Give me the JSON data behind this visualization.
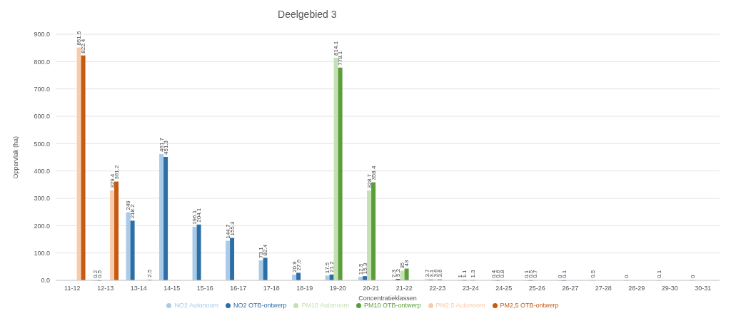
{
  "chart_data": {
    "type": "bar",
    "title": "Deelgebied 3",
    "xlabel": "Concentratieklassen",
    "ylabel": "Oppervlak (ha)",
    "categories": [
      "11-12",
      "12-13",
      "13-14",
      "14-15",
      "15-16",
      "16-17",
      "17-18",
      "18-19",
      "19-20",
      "20-21",
      "21-22",
      "22-23",
      "23-24",
      "24-25",
      "25-26",
      "26-27",
      "27-28",
      "28-29",
      "29-30",
      "30-31"
    ],
    "series": [
      {
        "name": "NO2 Autonoom",
        "color": "#a9cbe8",
        "values": [
          null,
          0.2,
          249.0,
          461.7,
          196.1,
          144.7,
          73.1,
          20.9,
          17.5,
          12.5,
          2.3,
          3.7,
          1.0,
          0.4,
          0.1,
          0.0,
          0.5,
          0.0,
          0.1,
          0.0
        ]
      },
      {
        "name": "NO2 OTB-ontwerp",
        "color": "#2e6ea6",
        "values": [
          null,
          0.5,
          218.2,
          451.3,
          204.1,
          155.3,
          82.4,
          27.6,
          21.2,
          15.3,
          5.2,
          3.1,
          1.1,
          0.6,
          0.5,
          0.1,
          null,
          null,
          null,
          null
        ]
      },
      {
        "name": "PM10 Autonoom",
        "color": "#c5e0b3",
        "values": [
          null,
          null,
          null,
          null,
          null,
          null,
          null,
          null,
          814.1,
          328.7,
          35.0,
          3.6,
          null,
          0.8,
          0.7,
          null,
          null,
          null,
          null,
          null
        ]
      },
      {
        "name": "PM10 OTB-ontwerp",
        "color": "#5a9e3a",
        "values": [
          null,
          null,
          null,
          null,
          null,
          null,
          null,
          null,
          778.1,
          358.4,
          43.0,
          3.6,
          1.3,
          null,
          null,
          null,
          null,
          null,
          null,
          null
        ]
      },
      {
        "name": "PM2,5 Autonoom",
        "color": "#f8cbad",
        "values": [
          851.5,
          329.4,
          null,
          null,
          null,
          null,
          null,
          null,
          null,
          null,
          null,
          null,
          null,
          null,
          null,
          null,
          null,
          null,
          null,
          null
        ]
      },
      {
        "name": "PM2,5 OTB-ontwerp",
        "color": "#c55a11",
        "values": [
          822.4,
          361.2,
          2.5,
          null,
          null,
          null,
          null,
          null,
          null,
          null,
          null,
          null,
          null,
          null,
          null,
          null,
          null,
          null,
          null,
          null
        ]
      }
    ],
    "ylim": [
      0,
      900
    ],
    "yticks": [
      {
        "value": 0,
        "label": "0.0"
      },
      {
        "value": 100,
        "label": "100.0"
      },
      {
        "value": 200,
        "label": "200.0"
      },
      {
        "value": 300,
        "label": "300.0"
      },
      {
        "value": 400,
        "label": "400.0"
      },
      {
        "value": 500,
        "label": "500.0"
      },
      {
        "value": 600,
        "label": "600.0"
      },
      {
        "value": 700,
        "label": "700.0"
      },
      {
        "value": 800,
        "label": "800.0"
      },
      {
        "value": 900,
        "label": "900.0"
      }
    ],
    "grid": "y",
    "legend": "bottom",
    "data_labels": true
  }
}
